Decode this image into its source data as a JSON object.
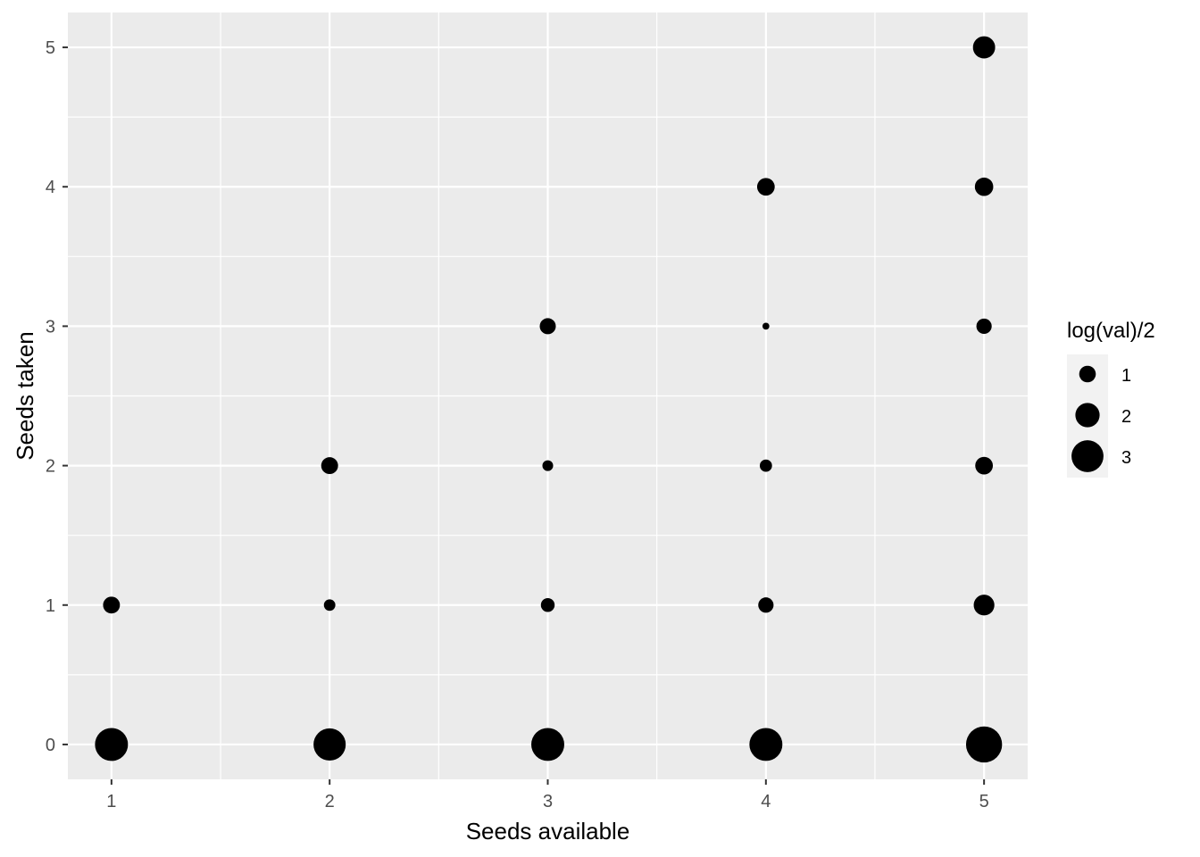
{
  "chart_data": {
    "type": "scatter",
    "xlabel": "Seeds available",
    "ylabel": "Seeds taken",
    "xlim": [
      0.8,
      5.2
    ],
    "ylim": [
      -0.25,
      5.25
    ],
    "x_ticks": [
      1,
      2,
      3,
      4,
      5
    ],
    "y_ticks": [
      0,
      1,
      2,
      3,
      4,
      5
    ],
    "x_tick_labels": [
      "1",
      "2",
      "3",
      "4",
      "5"
    ],
    "y_tick_labels": [
      "0",
      "1",
      "2",
      "3",
      "4",
      "5"
    ],
    "grid": true,
    "panel_color": "#ebebeb",
    "point_color": "#000000",
    "size_variable": "log(val)/2",
    "points": [
      {
        "x": 1,
        "y": 0,
        "size": 3.6
      },
      {
        "x": 1,
        "y": 1,
        "size": 1.5
      },
      {
        "x": 2,
        "y": 0,
        "size": 3.5
      },
      {
        "x": 2,
        "y": 1,
        "size": 0.8
      },
      {
        "x": 2,
        "y": 2,
        "size": 1.5
      },
      {
        "x": 3,
        "y": 0,
        "size": 3.6
      },
      {
        "x": 3,
        "y": 1,
        "size": 1.1
      },
      {
        "x": 3,
        "y": 2,
        "size": 0.7
      },
      {
        "x": 3,
        "y": 3,
        "size": 1.4
      },
      {
        "x": 4,
        "y": 0,
        "size": 3.6
      },
      {
        "x": 4,
        "y": 1,
        "size": 1.3
      },
      {
        "x": 4,
        "y": 2,
        "size": 0.9
      },
      {
        "x": 4,
        "y": 3,
        "size": 0.2
      },
      {
        "x": 4,
        "y": 4,
        "size": 1.6
      },
      {
        "x": 5,
        "y": 0,
        "size": 4.0
      },
      {
        "x": 5,
        "y": 1,
        "size": 2.0
      },
      {
        "x": 5,
        "y": 2,
        "size": 1.6
      },
      {
        "x": 5,
        "y": 3,
        "size": 1.3
      },
      {
        "x": 5,
        "y": 4,
        "size": 1.7
      },
      {
        "x": 5,
        "y": 5,
        "size": 2.2
      }
    ],
    "legend": {
      "title": "log(val)/2",
      "position": "right",
      "entries": [
        {
          "label": "1",
          "size": 1
        },
        {
          "label": "2",
          "size": 2
        },
        {
          "label": "3",
          "size": 3
        }
      ]
    }
  }
}
